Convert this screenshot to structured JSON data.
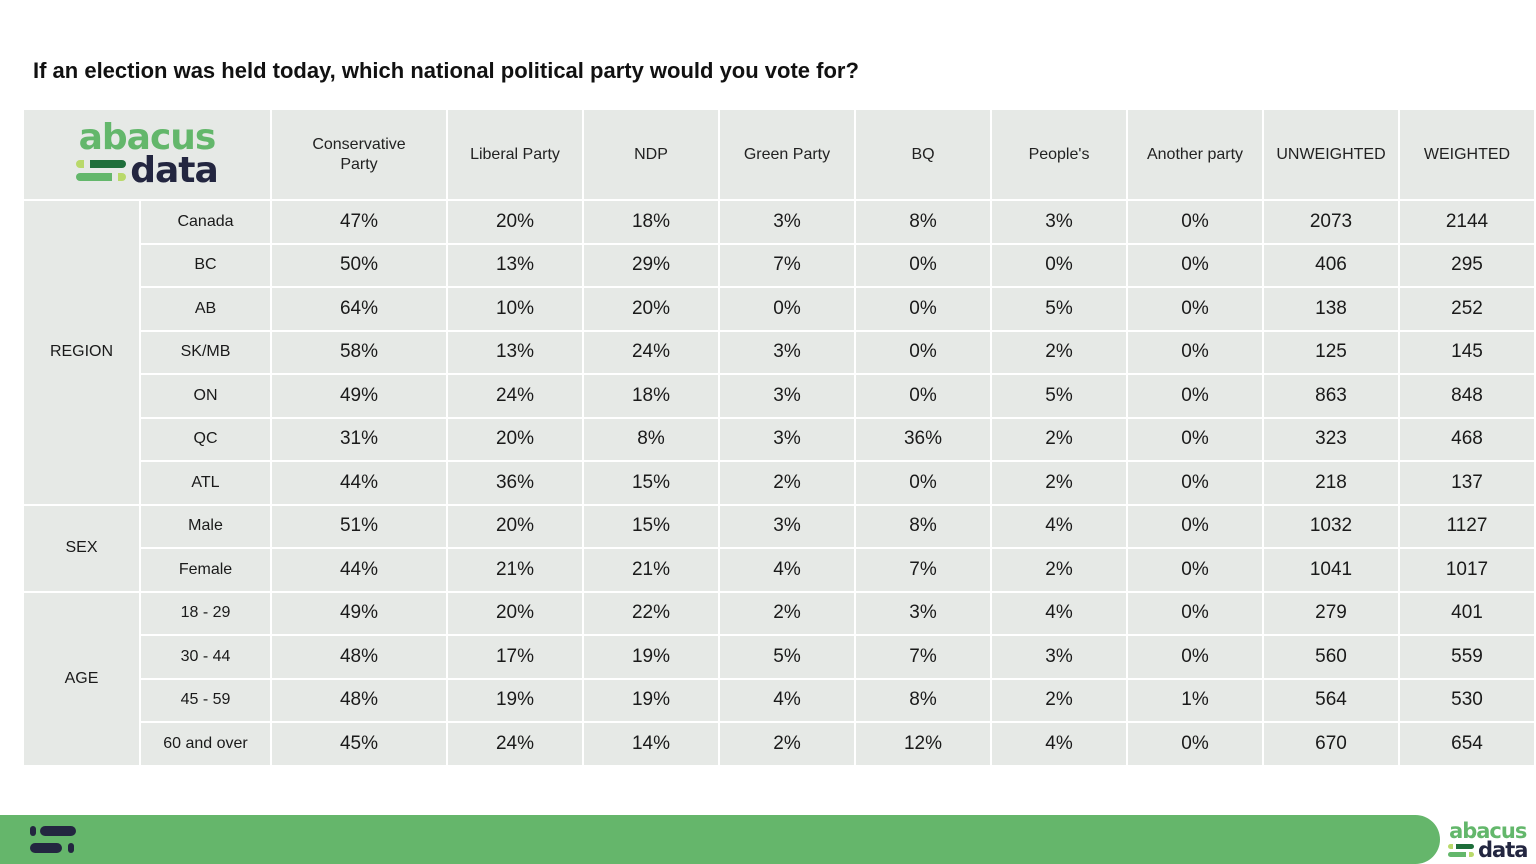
{
  "title": "If an election was held today, which national political party would you vote for?",
  "logo": {
    "line1": "abacus",
    "line2": "data",
    "colors": {
      "green": "#63b76b",
      "dark_green": "#1e6e3a",
      "lime": "#b9d96a",
      "navy": "#232640"
    }
  },
  "footer": {
    "color": "#65b66b"
  },
  "chart_data": {
    "type": "table",
    "title": "If an election was held today, which national political party would you vote for?",
    "columns": [
      "Conservative Party",
      "Liberal Party",
      "NDP",
      "Green Party",
      "BQ",
      "People's",
      "Another party",
      "UNWEIGHTED",
      "WEIGHTED"
    ],
    "groups": [
      {
        "name": "REGION",
        "rows": [
          {
            "label": "Canada",
            "values": [
              "47%",
              "20%",
              "18%",
              "3%",
              "8%",
              "3%",
              "0%",
              "2073",
              "2144"
            ]
          },
          {
            "label": "BC",
            "values": [
              "50%",
              "13%",
              "29%",
              "7%",
              "0%",
              "0%",
              "0%",
              "406",
              "295"
            ]
          },
          {
            "label": "AB",
            "values": [
              "64%",
              "10%",
              "20%",
              "0%",
              "0%",
              "5%",
              "0%",
              "138",
              "252"
            ]
          },
          {
            "label": "SK/MB",
            "values": [
              "58%",
              "13%",
              "24%",
              "3%",
              "0%",
              "2%",
              "0%",
              "125",
              "145"
            ]
          },
          {
            "label": "ON",
            "values": [
              "49%",
              "24%",
              "18%",
              "3%",
              "0%",
              "5%",
              "0%",
              "863",
              "848"
            ]
          },
          {
            "label": "QC",
            "values": [
              "31%",
              "20%",
              "8%",
              "3%",
              "36%",
              "2%",
              "0%",
              "323",
              "468"
            ]
          },
          {
            "label": "ATL",
            "values": [
              "44%",
              "36%",
              "15%",
              "2%",
              "0%",
              "2%",
              "0%",
              "218",
              "137"
            ]
          }
        ]
      },
      {
        "name": "SEX",
        "rows": [
          {
            "label": "Male",
            "values": [
              "51%",
              "20%",
              "15%",
              "3%",
              "8%",
              "4%",
              "0%",
              "1032",
              "1127"
            ]
          },
          {
            "label": "Female",
            "values": [
              "44%",
              "21%",
              "21%",
              "4%",
              "7%",
              "2%",
              "0%",
              "1041",
              "1017"
            ]
          }
        ]
      },
      {
        "name": "AGE",
        "rows": [
          {
            "label": "18 - 29",
            "values": [
              "49%",
              "20%",
              "22%",
              "2%",
              "3%",
              "4%",
              "0%",
              "279",
              "401"
            ]
          },
          {
            "label": "30 - 44",
            "values": [
              "48%",
              "17%",
              "19%",
              "5%",
              "7%",
              "3%",
              "0%",
              "560",
              "559"
            ]
          },
          {
            "label": "45 - 59",
            "values": [
              "48%",
              "19%",
              "19%",
              "4%",
              "8%",
              "2%",
              "1%",
              "564",
              "530"
            ]
          },
          {
            "label": "60 and over",
            "values": [
              "45%",
              "24%",
              "14%",
              "2%",
              "12%",
              "4%",
              "0%",
              "670",
              "654"
            ]
          }
        ]
      }
    ]
  }
}
